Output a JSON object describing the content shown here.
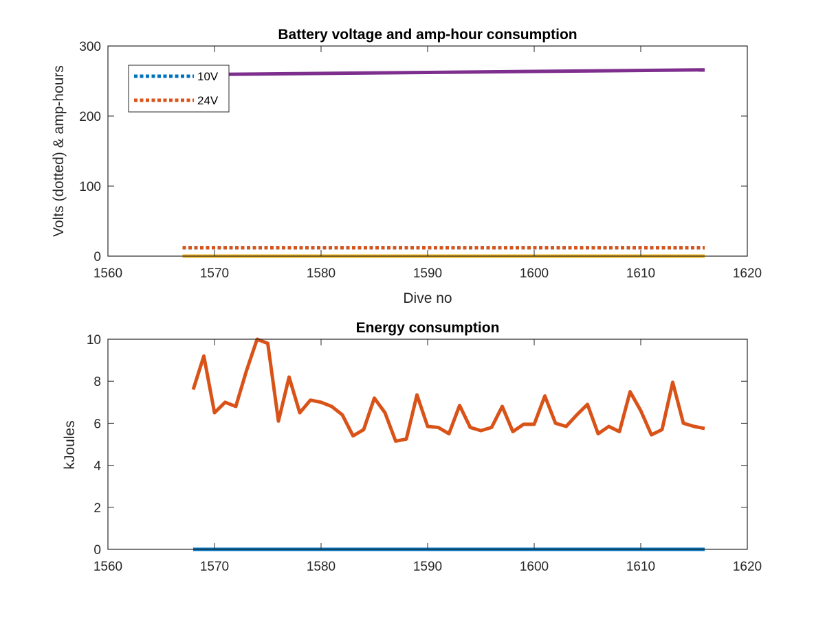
{
  "chart_data": [
    {
      "type": "line",
      "title": "Battery voltage and amp-hour consumption",
      "xlabel": "Dive no",
      "ylabel": "Volts (dotted) & amp-hours",
      "xlim": [
        1560,
        1620
      ],
      "ylim": [
        0,
        300
      ],
      "xticks": [
        1560,
        1570,
        1580,
        1590,
        1600,
        1610,
        1620
      ],
      "yticks": [
        0,
        100,
        200,
        300
      ],
      "grid": false,
      "legend": {
        "placement": "top-left"
      },
      "series": [
        {
          "name": "10V",
          "color": "#0072BD",
          "style": "dotted",
          "x": [
            1567,
            1616
          ],
          "values": [
            12,
            12
          ]
        },
        {
          "name": "24V",
          "color": "#D95319",
          "style": "dotted",
          "x": [
            1567,
            1616
          ],
          "values": [
            12,
            12
          ]
        },
        {
          "color": "#EDB120",
          "style": "solid",
          "x": [
            1567,
            1616
          ],
          "values": [
            0,
            0
          ]
        },
        {
          "color": "#7E2F8E",
          "style": "solid",
          "x": [
            1567,
            1616
          ],
          "values": [
            259,
            266
          ]
        }
      ]
    },
    {
      "type": "line",
      "title": "Energy consumption",
      "ylabel": "kJoules",
      "xlim": [
        1560,
        1620
      ],
      "ylim": [
        0,
        10
      ],
      "xticks": [
        1560,
        1570,
        1580,
        1590,
        1600,
        1610,
        1620
      ],
      "yticks": [
        0,
        2,
        4,
        6,
        8,
        10
      ],
      "grid": false,
      "series": [
        {
          "color": "#0072BD",
          "style": "solid",
          "x": [
            1568,
            1616
          ],
          "values": [
            0,
            0
          ]
        },
        {
          "color": "#D95319",
          "style": "solid",
          "x": [
            1568,
            1569,
            1570,
            1571,
            1572,
            1573,
            1574,
            1575,
            1576,
            1577,
            1578,
            1579,
            1580,
            1581,
            1582,
            1583,
            1584,
            1585,
            1586,
            1587,
            1588,
            1589,
            1590,
            1591,
            1592,
            1593,
            1594,
            1595,
            1596,
            1597,
            1598,
            1599,
            1600,
            1601,
            1602,
            1603,
            1604,
            1605,
            1606,
            1607,
            1608,
            1609,
            1610,
            1611,
            1612,
            1613,
            1614,
            1615,
            1616
          ],
          "values": [
            7.6,
            9.2,
            6.5,
            7.0,
            6.8,
            8.5,
            10.0,
            9.8,
            6.1,
            8.2,
            6.5,
            7.1,
            7.0,
            6.8,
            6.4,
            5.4,
            5.7,
            7.2,
            6.5,
            5.15,
            5.25,
            7.35,
            5.85,
            5.8,
            5.5,
            6.85,
            5.8,
            5.65,
            5.8,
            6.8,
            5.6,
            5.95,
            5.95,
            7.3,
            6.0,
            5.85,
            6.4,
            6.9,
            5.5,
            5.85,
            5.6,
            7.5,
            6.6,
            5.45,
            5.7,
            7.95,
            6.0,
            5.85,
            5.75
          ]
        }
      ]
    }
  ]
}
